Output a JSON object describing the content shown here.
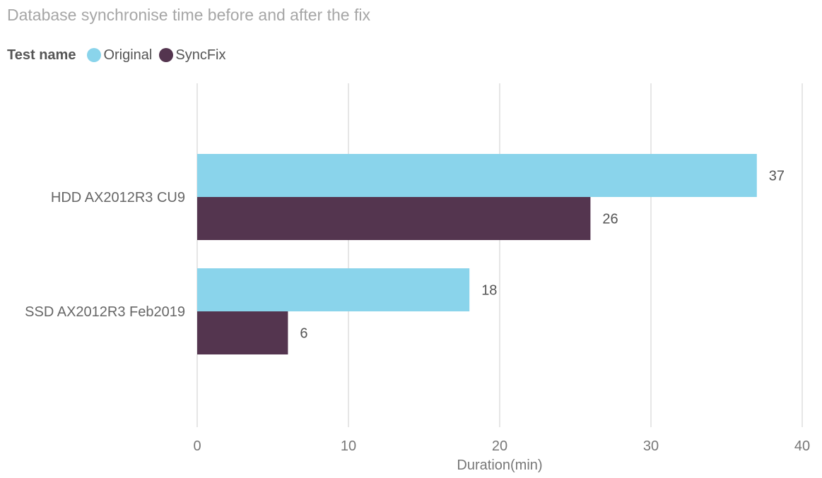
{
  "chart_data": {
    "type": "bar",
    "orientation": "horizontal",
    "title": "Database synchronise time before and after the fix",
    "legend_title": "Test name",
    "legend_position": "top-left",
    "categories": [
      "HDD AX2012R3 CU9",
      "SSD AX2012R3 Feb2019"
    ],
    "series": [
      {
        "name": "Original",
        "color": "#8ad4eb",
        "values": [
          37,
          18
        ]
      },
      {
        "name": "SyncFix",
        "color": "#54354f",
        "values": [
          26,
          6
        ]
      }
    ],
    "xlabel": "Duration(min)",
    "ylabel": "",
    "xlim": [
      0,
      40
    ],
    "xticks": [
      0,
      10,
      20,
      30,
      40
    ],
    "grid": true,
    "data_labels": true
  }
}
